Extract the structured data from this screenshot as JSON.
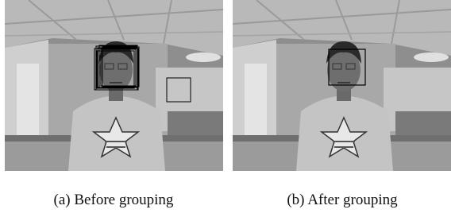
{
  "figure": {
    "panels": [
      {
        "caption": "(a) Before grouping"
      },
      {
        "caption": "(b) After grouping"
      }
    ]
  }
}
